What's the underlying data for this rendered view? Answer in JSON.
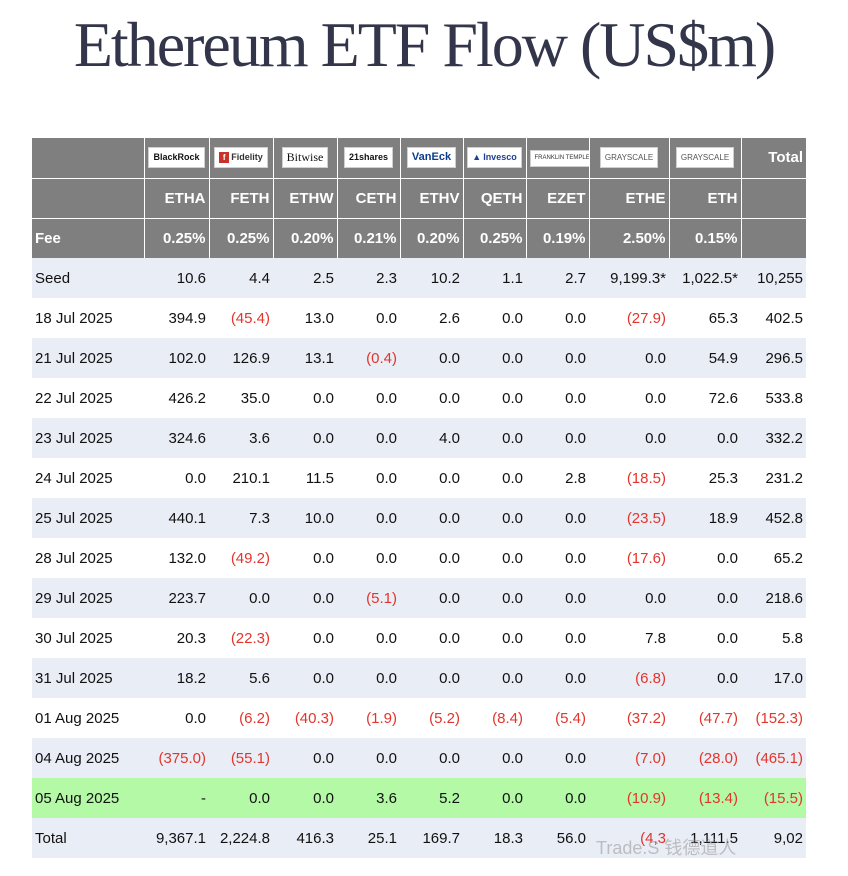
{
  "title": "Ethereum ETF Flow (US$m)",
  "logos": [
    "BlackRock",
    "Fidelity",
    "Bitwise",
    "21shares",
    "VanEck",
    "Invesco",
    "FRANKLIN TEMPLETON",
    "GRAYSCALE",
    "GRAYSCALE"
  ],
  "total_header": "Total",
  "tickers": [
    "ETHA",
    "FETH",
    "ETHW",
    "CETH",
    "ETHV",
    "QETH",
    "EZET",
    "ETHE",
    "ETH"
  ],
  "fee_label": "Fee",
  "fees": [
    "0.25%",
    "0.25%",
    "0.20%",
    "0.21%",
    "0.20%",
    "0.25%",
    "0.19%",
    "2.50%",
    "0.15%"
  ],
  "rows": [
    {
      "label": "Seed",
      "cells": [
        "10.6",
        "4.4",
        "2.5",
        "2.3",
        "10.2",
        "1.1",
        "2.7",
        "9,199.3*",
        "1,022.5*",
        "10,255"
      ]
    },
    {
      "label": "18 Jul 2025",
      "cells": [
        "394.9",
        "(45.4)",
        "13.0",
        "0.0",
        "2.6",
        "0.0",
        "0.0",
        "(27.9)",
        "65.3",
        "402.5"
      ]
    },
    {
      "label": "21 Jul 2025",
      "cells": [
        "102.0",
        "126.9",
        "13.1",
        "(0.4)",
        "0.0",
        "0.0",
        "0.0",
        "0.0",
        "54.9",
        "296.5"
      ]
    },
    {
      "label": "22 Jul 2025",
      "cells": [
        "426.2",
        "35.0",
        "0.0",
        "0.0",
        "0.0",
        "0.0",
        "0.0",
        "0.0",
        "72.6",
        "533.8"
      ]
    },
    {
      "label": "23 Jul 2025",
      "cells": [
        "324.6",
        "3.6",
        "0.0",
        "0.0",
        "4.0",
        "0.0",
        "0.0",
        "0.0",
        "0.0",
        "332.2"
      ]
    },
    {
      "label": "24 Jul 2025",
      "cells": [
        "0.0",
        "210.1",
        "11.5",
        "0.0",
        "0.0",
        "0.0",
        "2.8",
        "(18.5)",
        "25.3",
        "231.2"
      ]
    },
    {
      "label": "25 Jul 2025",
      "cells": [
        "440.1",
        "7.3",
        "10.0",
        "0.0",
        "0.0",
        "0.0",
        "0.0",
        "(23.5)",
        "18.9",
        "452.8"
      ]
    },
    {
      "label": "28 Jul 2025",
      "cells": [
        "132.0",
        "(49.2)",
        "0.0",
        "0.0",
        "0.0",
        "0.0",
        "0.0",
        "(17.6)",
        "0.0",
        "65.2"
      ]
    },
    {
      "label": "29 Jul 2025",
      "cells": [
        "223.7",
        "0.0",
        "0.0",
        "(5.1)",
        "0.0",
        "0.0",
        "0.0",
        "0.0",
        "0.0",
        "218.6"
      ]
    },
    {
      "label": "30 Jul 2025",
      "cells": [
        "20.3",
        "(22.3)",
        "0.0",
        "0.0",
        "0.0",
        "0.0",
        "0.0",
        "7.8",
        "0.0",
        "5.8"
      ]
    },
    {
      "label": "31 Jul 2025",
      "cells": [
        "18.2",
        "5.6",
        "0.0",
        "0.0",
        "0.0",
        "0.0",
        "0.0",
        "(6.8)",
        "0.0",
        "17.0"
      ]
    },
    {
      "label": "01 Aug 2025",
      "cells": [
        "0.0",
        "(6.2)",
        "(40.3)",
        "(1.9)",
        "(5.2)",
        "(8.4)",
        "(5.4)",
        "(37.2)",
        "(47.7)",
        "(152.3)"
      ]
    },
    {
      "label": "04 Aug 2025",
      "cells": [
        "(375.0)",
        "(55.1)",
        "0.0",
        "0.0",
        "0.0",
        "0.0",
        "0.0",
        "(7.0)",
        "(28.0)",
        "(465.1)"
      ]
    },
    {
      "label": "05 Aug 2025",
      "cells": [
        "-",
        "0.0",
        "0.0",
        "3.6",
        "5.2",
        "0.0",
        "0.0",
        "(10.9)",
        "(13.4)",
        "(15.5)"
      ],
      "highlight": true
    },
    {
      "label": "Total",
      "cells": [
        "9,367.1",
        "2,224.8",
        "416.3",
        "25.1",
        "169.7",
        "18.3",
        "56.0",
        "(4,3",
        "1,111.5",
        "9,02"
      ]
    }
  ],
  "watermark": "Trade.S 钱德道人"
}
